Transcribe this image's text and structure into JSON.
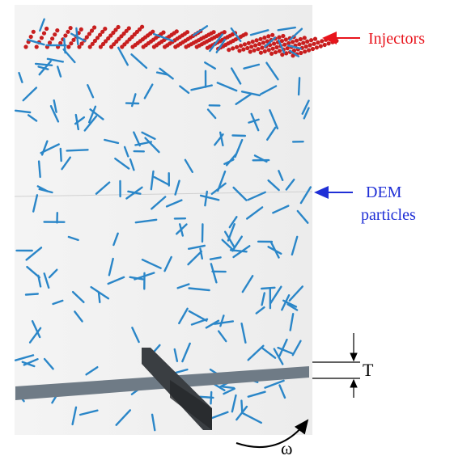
{
  "labels": {
    "injectors": "Injectors",
    "dem_line1": "DEM",
    "dem_line2": "particles",
    "thickness": "T",
    "omega": "ω"
  },
  "colors": {
    "injector_label": "#e8141c",
    "dem_label": "#1f2fd6",
    "injector_particle": "#c81e1e",
    "dem_particle": "#2a86c8",
    "domain_background": "#f1f1f1",
    "blade_horizontal": "#6f7b86",
    "blade_vertical": "#3a3e42"
  }
}
